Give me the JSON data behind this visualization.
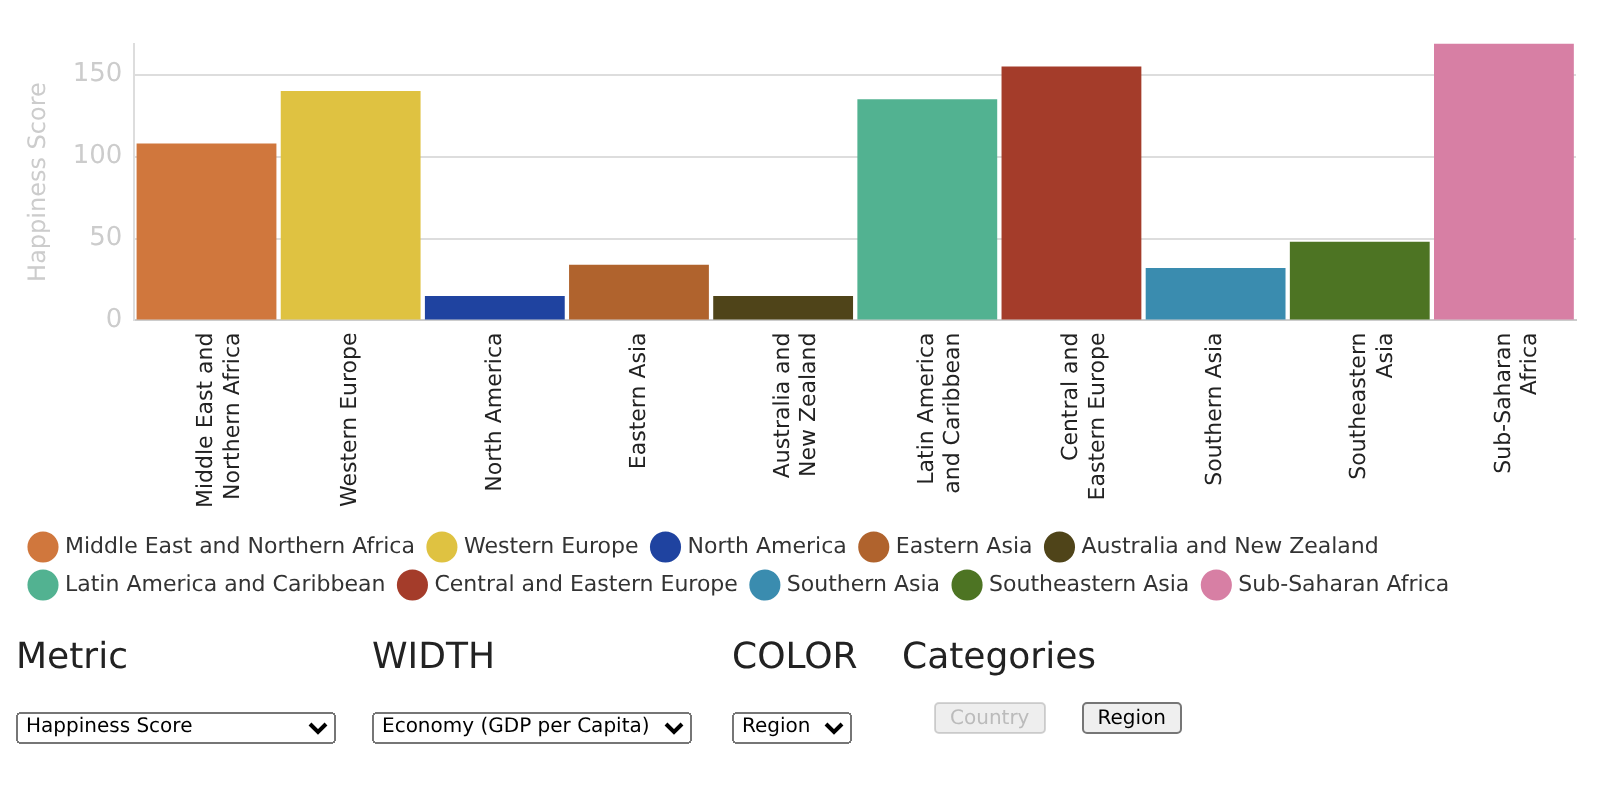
{
  "chart_data": {
    "type": "bar",
    "ylabel": "Happiness Score",
    "categories": [
      "Middle East and Northern Africa",
      "Western Europe",
      "North America",
      "Eastern Asia",
      "Australia and New Zealand",
      "Latin America and Caribbean",
      "Central and Eastern Europe",
      "Southern Asia",
      "Southeastern Asia",
      "Sub-Saharan Africa"
    ],
    "series": [
      {
        "name": "Middle East and Northern Africa",
        "color": "#d0773d",
        "values": [
          108,
          null,
          null,
          null,
          null,
          null,
          null,
          null,
          null,
          null
        ]
      },
      {
        "name": "Western Europe",
        "color": "#dfc241",
        "values": [
          null,
          140,
          null,
          null,
          null,
          null,
          null,
          null,
          null,
          null
        ]
      },
      {
        "name": "North America",
        "color": "#1f43a0",
        "values": [
          null,
          null,
          15,
          null,
          null,
          null,
          null,
          null,
          null,
          null
        ]
      },
      {
        "name": "Eastern Asia",
        "color": "#b0632d",
        "values": [
          null,
          null,
          null,
          34,
          null,
          null,
          null,
          null,
          null,
          null
        ]
      },
      {
        "name": "Australia and New Zealand",
        "color": "#4f4419",
        "values": [
          null,
          null,
          null,
          null,
          15,
          null,
          null,
          null,
          null,
          null
        ]
      },
      {
        "name": "Latin America and Caribbean",
        "color": "#52b291",
        "values": [
          null,
          null,
          null,
          null,
          null,
          135,
          null,
          null,
          null,
          null
        ]
      },
      {
        "name": "Central and Eastern Europe",
        "color": "#a43c2a",
        "values": [
          null,
          null,
          null,
          null,
          null,
          null,
          155,
          null,
          null,
          null
        ]
      },
      {
        "name": "Southern Asia",
        "color": "#3a8caf",
        "values": [
          null,
          null,
          null,
          null,
          null,
          null,
          null,
          32,
          null,
          null
        ]
      },
      {
        "name": "Southeastern Asia",
        "color": "#4d7423",
        "values": [
          null,
          null,
          null,
          null,
          null,
          null,
          null,
          null,
          48,
          null
        ]
      },
      {
        "name": "Sub-Saharan Africa",
        "color": "#d77fa4",
        "values": [
          null,
          null,
          null,
          null,
          null,
          null,
          null,
          null,
          null,
          169
        ]
      }
    ],
    "ylim": [
      0,
      169
    ],
    "yticks": [
      0,
      50,
      100,
      150
    ],
    "grid": "y",
    "legend": "bottom",
    "annotations": [
      "Metric",
      "WIDTH",
      "COLOR",
      "Categories",
      "Happiness Score",
      "Economy (GDP per Capita)",
      "Region",
      "Country",
      "Region"
    ]
  }
}
